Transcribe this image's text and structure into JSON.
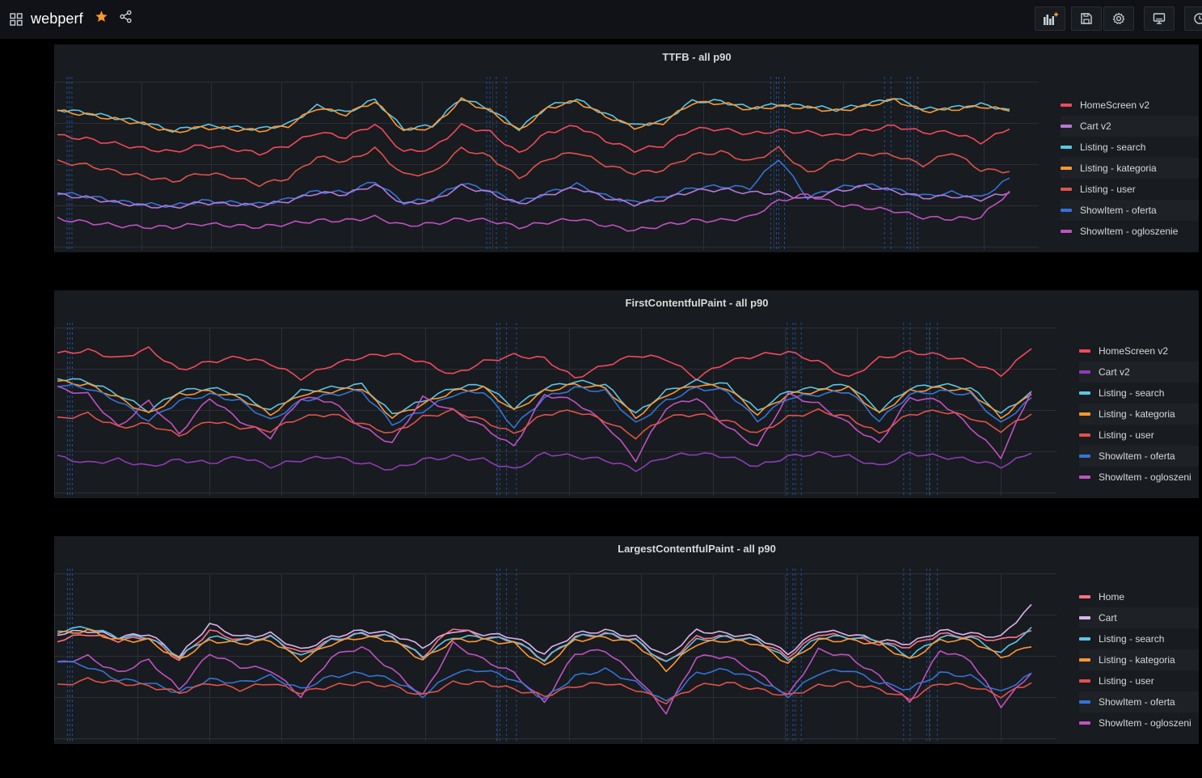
{
  "header": {
    "title": "webperf",
    "apps_icon": "apps-grid-icon",
    "star_icon": "star-icon",
    "share_icon": "share-icon",
    "star_color": "#ff9830",
    "toolbar": [
      "add-panel-icon",
      "save-icon",
      "settings-icon",
      "tv-mode-icon",
      "time-picker-icon"
    ]
  },
  "panels": [
    {
      "title": "TTFB - all p90",
      "legend": [
        {
          "label": "HomeScreen v2",
          "color": "#f2495c"
        },
        {
          "label": "Cart v2",
          "color": "#b877d9"
        },
        {
          "label": "Listing - search",
          "color": "#5ac6e6"
        },
        {
          "label": "Listing - kategoria",
          "color": "#ff9830"
        },
        {
          "label": "Listing - user",
          "color": "#e0524a"
        },
        {
          "label": "ShowItem - oferta",
          "color": "#3274d9"
        },
        {
          "label": "ShowItem - ogloszenie",
          "color": "#c051c4"
        }
      ]
    },
    {
      "title": "FirstContentfulPaint - all p90",
      "legend": [
        {
          "label": "HomeScreen v2",
          "color": "#f2495c"
        },
        {
          "label": "Cart v2",
          "color": "#8f3bb8"
        },
        {
          "label": "Listing - search",
          "color": "#5ac6e6"
        },
        {
          "label": "Listing - kategoria",
          "color": "#ff9830"
        },
        {
          "label": "Listing - user",
          "color": "#e0524a"
        },
        {
          "label": "ShowItem - oferta",
          "color": "#3274d9"
        },
        {
          "label": "ShowItem - ogloszeni",
          "color": "#c051c4"
        }
      ]
    },
    {
      "title": "LargestContentfulPaint - all p90",
      "legend": [
        {
          "label": "Home",
          "color": "#ff7383"
        },
        {
          "label": "Cart",
          "color": "#dcb3f0"
        },
        {
          "label": "Listing - search",
          "color": "#5ac6e6"
        },
        {
          "label": "Listing - kategoria",
          "color": "#ff9830"
        },
        {
          "label": "Listing - user",
          "color": "#e0524a"
        },
        {
          "label": "ShowItem - oferta",
          "color": "#3274d9"
        },
        {
          "label": "ShowItem - ogloszeni",
          "color": "#c051c4"
        }
      ]
    }
  ],
  "chart_data": [
    {
      "type": "line",
      "title": "TTFB - all p90",
      "series": [
        {
          "name": "Listing - search",
          "values": [
            0.84,
            0.82,
            0.79,
            0.76,
            0.71,
            0.74,
            0.73,
            0.72,
            0.75,
            0.86,
            0.82,
            0.9,
            0.72,
            0.74,
            0.91,
            0.84,
            0.72,
            0.86,
            0.9,
            0.81,
            0.74,
            0.77,
            0.89,
            0.89,
            0.85,
            0.87,
            0.86,
            0.84,
            0.87,
            0.91,
            0.84,
            0.85,
            0.87,
            0.84
          ]
        },
        {
          "name": "Listing - kategoria",
          "values": [
            0.83,
            0.81,
            0.78,
            0.75,
            0.7,
            0.73,
            0.72,
            0.71,
            0.74,
            0.85,
            0.81,
            0.89,
            0.71,
            0.73,
            0.9,
            0.83,
            0.71,
            0.85,
            0.89,
            0.8,
            0.73,
            0.76,
            0.88,
            0.88,
            0.84,
            0.86,
            0.85,
            0.83,
            0.86,
            0.9,
            0.83,
            0.84,
            0.86,
            0.83
          ]
        },
        {
          "name": "HomeScreen v2",
          "values": [
            0.68,
            0.66,
            0.63,
            0.6,
            0.58,
            0.62,
            0.6,
            0.57,
            0.62,
            0.7,
            0.67,
            0.75,
            0.58,
            0.6,
            0.74,
            0.7,
            0.57,
            0.7,
            0.74,
            0.65,
            0.59,
            0.62,
            0.72,
            0.72,
            0.69,
            0.71,
            0.7,
            0.68,
            0.71,
            0.74,
            0.7,
            0.7,
            0.64,
            0.72
          ]
        },
        {
          "name": "Listing - user",
          "values": [
            0.52,
            0.5,
            0.46,
            0.43,
            0.4,
            0.45,
            0.43,
            0.38,
            0.42,
            0.55,
            0.52,
            0.6,
            0.44,
            0.45,
            0.6,
            0.55,
            0.42,
            0.54,
            0.58,
            0.5,
            0.45,
            0.47,
            0.56,
            0.58,
            0.52,
            0.6,
            0.45,
            0.53,
            0.57,
            0.56,
            0.5,
            0.58,
            0.47,
            0.46
          ]
        },
        {
          "name": "ShowItem - oferta",
          "values": [
            0.33,
            0.31,
            0.28,
            0.26,
            0.25,
            0.28,
            0.27,
            0.26,
            0.29,
            0.34,
            0.33,
            0.4,
            0.27,
            0.29,
            0.39,
            0.34,
            0.27,
            0.33,
            0.38,
            0.31,
            0.27,
            0.3,
            0.36,
            0.37,
            0.36,
            0.54,
            0.3,
            0.36,
            0.38,
            0.35,
            0.31,
            0.33,
            0.3,
            0.42
          ]
        },
        {
          "name": "Cart v2",
          "values": [
            0.32,
            0.3,
            0.27,
            0.25,
            0.24,
            0.27,
            0.26,
            0.25,
            0.28,
            0.33,
            0.32,
            0.38,
            0.26,
            0.28,
            0.37,
            0.33,
            0.26,
            0.32,
            0.36,
            0.3,
            0.26,
            0.29,
            0.34,
            0.35,
            0.33,
            0.33,
            0.29,
            0.34,
            0.37,
            0.34,
            0.3,
            0.31,
            0.29,
            0.33
          ]
        },
        {
          "name": "ShowItem - ogloszenie",
          "values": [
            0.17,
            0.15,
            0.13,
            0.12,
            0.12,
            0.14,
            0.13,
            0.12,
            0.14,
            0.16,
            0.16,
            0.18,
            0.13,
            0.14,
            0.17,
            0.16,
            0.12,
            0.15,
            0.17,
            0.13,
            0.1,
            0.13,
            0.16,
            0.16,
            0.18,
            0.28,
            0.32,
            0.26,
            0.24,
            0.22,
            0.18,
            0.17,
            0.18,
            0.34
          ]
        }
      ]
    },
    {
      "type": "line",
      "title": "FirstContentfulPaint - all p90",
      "series": [
        {
          "name": "HomeScreen v2",
          "values": [
            0.85,
            0.87,
            0.82,
            0.88,
            0.75,
            0.8,
            0.83,
            0.79,
            0.7,
            0.78,
            0.83,
            0.85,
            0.8,
            0.72,
            0.8,
            0.84,
            0.82,
            0.7,
            0.78,
            0.84,
            0.82,
            0.7,
            0.8,
            0.84,
            0.86,
            0.8,
            0.7,
            0.82,
            0.86,
            0.84,
            0.8,
            0.72,
            0.88
          ]
        },
        {
          "name": "Listing - search",
          "values": [
            0.7,
            0.68,
            0.6,
            0.5,
            0.62,
            0.64,
            0.6,
            0.5,
            0.62,
            0.64,
            0.66,
            0.48,
            0.56,
            0.64,
            0.66,
            0.52,
            0.64,
            0.68,
            0.66,
            0.48,
            0.62,
            0.68,
            0.66,
            0.5,
            0.62,
            0.64,
            0.66,
            0.5,
            0.64,
            0.66,
            0.64,
            0.48,
            0.62
          ]
        },
        {
          "name": "Listing - kategoria",
          "values": [
            0.68,
            0.66,
            0.58,
            0.48,
            0.6,
            0.62,
            0.58,
            0.48,
            0.6,
            0.62,
            0.64,
            0.46,
            0.54,
            0.62,
            0.64,
            0.5,
            0.62,
            0.66,
            0.64,
            0.46,
            0.6,
            0.66,
            0.64,
            0.48,
            0.6,
            0.62,
            0.64,
            0.48,
            0.62,
            0.64,
            0.62,
            0.46,
            0.6
          ]
        },
        {
          "name": "ShowItem - oferta",
          "values": [
            0.66,
            0.64,
            0.56,
            0.44,
            0.56,
            0.6,
            0.56,
            0.44,
            0.56,
            0.6,
            0.62,
            0.42,
            0.5,
            0.6,
            0.62,
            0.4,
            0.58,
            0.64,
            0.62,
            0.42,
            0.56,
            0.64,
            0.62,
            0.44,
            0.58,
            0.6,
            0.62,
            0.44,
            0.6,
            0.62,
            0.6,
            0.42,
            0.58
          ]
        },
        {
          "name": "ShowItem - ogloszeni",
          "values": [
            0.64,
            0.6,
            0.4,
            0.56,
            0.36,
            0.58,
            0.44,
            0.34,
            0.58,
            0.56,
            0.4,
            0.3,
            0.58,
            0.5,
            0.4,
            0.28,
            0.6,
            0.56,
            0.42,
            0.2,
            0.52,
            0.58,
            0.4,
            0.28,
            0.6,
            0.54,
            0.42,
            0.3,
            0.58,
            0.56,
            0.4,
            0.22,
            0.62
          ]
        },
        {
          "name": "Listing - user",
          "values": [
            0.45,
            0.48,
            0.4,
            0.42,
            0.35,
            0.44,
            0.4,
            0.38,
            0.46,
            0.48,
            0.42,
            0.36,
            0.46,
            0.5,
            0.44,
            0.36,
            0.48,
            0.5,
            0.44,
            0.34,
            0.46,
            0.48,
            0.44,
            0.36,
            0.46,
            0.5,
            0.46,
            0.36,
            0.48,
            0.5,
            0.46,
            0.38,
            0.48
          ]
        },
        {
          "name": "Cart v2",
          "values": [
            0.22,
            0.18,
            0.2,
            0.16,
            0.2,
            0.18,
            0.22,
            0.16,
            0.2,
            0.22,
            0.18,
            0.14,
            0.2,
            0.22,
            0.2,
            0.14,
            0.24,
            0.22,
            0.2,
            0.14,
            0.22,
            0.24,
            0.22,
            0.16,
            0.22,
            0.24,
            0.22,
            0.16,
            0.24,
            0.22,
            0.2,
            0.16,
            0.24
          ]
        }
      ]
    },
    {
      "type": "line",
      "title": "LargestContentfulPaint - all p90",
      "series": [
        {
          "name": "Cart",
          "values": [
            0.64,
            0.66,
            0.62,
            0.64,
            0.5,
            0.7,
            0.62,
            0.64,
            0.54,
            0.62,
            0.66,
            0.64,
            0.56,
            0.66,
            0.64,
            0.62,
            0.52,
            0.64,
            0.66,
            0.62,
            0.5,
            0.66,
            0.64,
            0.62,
            0.52,
            0.66,
            0.64,
            0.6,
            0.58,
            0.66,
            0.64,
            0.62,
            0.82
          ]
        },
        {
          "name": "Home",
          "values": [
            0.6,
            0.64,
            0.6,
            0.62,
            0.48,
            0.66,
            0.6,
            0.62,
            0.52,
            0.6,
            0.64,
            0.62,
            0.5,
            0.68,
            0.62,
            0.6,
            0.48,
            0.62,
            0.64,
            0.6,
            0.46,
            0.62,
            0.62,
            0.6,
            0.5,
            0.64,
            0.62,
            0.58,
            0.56,
            0.64,
            0.62,
            0.6,
            0.66
          ]
        },
        {
          "name": "Listing - search",
          "values": [
            0.66,
            0.68,
            0.62,
            0.62,
            0.5,
            0.62,
            0.6,
            0.62,
            0.5,
            0.6,
            0.64,
            0.62,
            0.5,
            0.62,
            0.62,
            0.6,
            0.48,
            0.62,
            0.64,
            0.6,
            0.46,
            0.6,
            0.62,
            0.6,
            0.48,
            0.62,
            0.62,
            0.6,
            0.5,
            0.62,
            0.62,
            0.52,
            0.68
          ]
        },
        {
          "name": "Listing - kategoria",
          "values": [
            0.64,
            0.66,
            0.6,
            0.6,
            0.48,
            0.6,
            0.58,
            0.6,
            0.48,
            0.58,
            0.62,
            0.6,
            0.48,
            0.6,
            0.6,
            0.58,
            0.44,
            0.6,
            0.62,
            0.58,
            0.42,
            0.58,
            0.6,
            0.58,
            0.46,
            0.6,
            0.6,
            0.58,
            0.48,
            0.6,
            0.6,
            0.5,
            0.56
          ]
        },
        {
          "name": "ShowItem - ogloszeni",
          "values": [
            0.46,
            0.5,
            0.4,
            0.48,
            0.3,
            0.52,
            0.44,
            0.42,
            0.26,
            0.5,
            0.56,
            0.42,
            0.26,
            0.58,
            0.48,
            0.4,
            0.22,
            0.52,
            0.54,
            0.38,
            0.16,
            0.5,
            0.5,
            0.4,
            0.26,
            0.54,
            0.5,
            0.38,
            0.22,
            0.54,
            0.48,
            0.2,
            0.4
          ]
        },
        {
          "name": "ShowItem - oferta",
          "values": [
            0.48,
            0.44,
            0.36,
            0.34,
            0.28,
            0.36,
            0.34,
            0.38,
            0.3,
            0.38,
            0.4,
            0.36,
            0.26,
            0.4,
            0.42,
            0.36,
            0.24,
            0.38,
            0.42,
            0.34,
            0.22,
            0.4,
            0.42,
            0.36,
            0.26,
            0.4,
            0.42,
            0.34,
            0.3,
            0.4,
            0.38,
            0.28,
            0.4
          ]
        },
        {
          "name": "Listing - user",
          "values": [
            0.32,
            0.36,
            0.34,
            0.32,
            0.28,
            0.34,
            0.3,
            0.34,
            0.28,
            0.32,
            0.34,
            0.32,
            0.26,
            0.34,
            0.34,
            0.3,
            0.26,
            0.32,
            0.34,
            0.3,
            0.22,
            0.32,
            0.34,
            0.3,
            0.26,
            0.32,
            0.34,
            0.3,
            0.24,
            0.34,
            0.32,
            0.26,
            0.34
          ]
        }
      ]
    }
  ]
}
